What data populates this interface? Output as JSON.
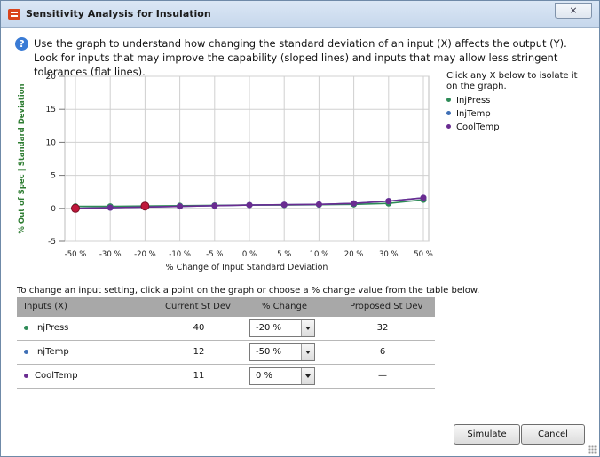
{
  "window": {
    "title": "Sensitivity Analysis for Insulation",
    "close_label": "⨯"
  },
  "instructions": "Use the graph to understand how changing the standard deviation of an input (X) affects the output (Y).  Look for inputs that may improve the capability (sloped lines) and inputs that may allow less stringent tolerances (flat lines).",
  "legend": {
    "title": "Click any X below to isolate it on the graph.",
    "items": [
      {
        "label": "InjPress",
        "color": "#2e8b57"
      },
      {
        "label": "InjTemp",
        "color": "#3f6fb5"
      },
      {
        "label": "CoolTemp",
        "color": "#6a2c91"
      }
    ]
  },
  "chart_data": {
    "type": "line",
    "ylabel": "% Out of Spec |   Standard Deviation",
    "xlabel": "% Change of Input Standard Deviation",
    "categories": [
      "-50 %",
      "-30 %",
      "-20 %",
      "-10 %",
      "-5 %",
      "0 %",
      "5 %",
      "10 %",
      "20 %",
      "30 %",
      "50 %"
    ],
    "ylim": [
      -5,
      20
    ],
    "yticks": [
      -5,
      0,
      5,
      10,
      15,
      20
    ],
    "grid": true,
    "series": [
      {
        "name": "InjPress",
        "color": "#2e8b57",
        "values": [
          0.3,
          0.3,
          0.35,
          0.4,
          0.45,
          0.5,
          0.5,
          0.55,
          0.6,
          0.75,
          1.3
        ]
      },
      {
        "name": "InjTemp",
        "color": "#3f6fb5",
        "values": [
          0.0,
          0.1,
          0.2,
          0.3,
          0.4,
          0.5,
          0.55,
          0.6,
          0.75,
          1.1,
          1.6
        ]
      },
      {
        "name": "CoolTemp",
        "color": "#6a2c91",
        "values": [
          0.0,
          0.1,
          0.2,
          0.3,
          0.4,
          0.5,
          0.55,
          0.6,
          0.75,
          1.1,
          1.6
        ]
      }
    ],
    "highlighted": [
      {
        "series": "InjPress",
        "category": "-20 %",
        "value": 0.35,
        "color": "#c0183b"
      },
      {
        "series": "InjTemp",
        "category": "-50 %",
        "value": 0.0,
        "color": "#c0183b"
      }
    ]
  },
  "table": {
    "note": "To change an input setting, click a point on the graph or choose a % change value from the table below.",
    "headers": [
      "Inputs (X)",
      "Current St Dev",
      "% Change",
      "Proposed St Dev"
    ],
    "rows": [
      {
        "name": "InjPress",
        "color": "#2e8b57",
        "current": "40",
        "change": "-20 %",
        "proposed": "32"
      },
      {
        "name": "InjTemp",
        "color": "#3f6fb5",
        "current": "12",
        "change": "-50 %",
        "proposed": "6"
      },
      {
        "name": "CoolTemp",
        "color": "#6a2c91",
        "current": "11",
        "change": "0 %",
        "proposed": "—"
      }
    ]
  },
  "buttons": {
    "simulate": "Simulate",
    "cancel": "Cancel"
  }
}
